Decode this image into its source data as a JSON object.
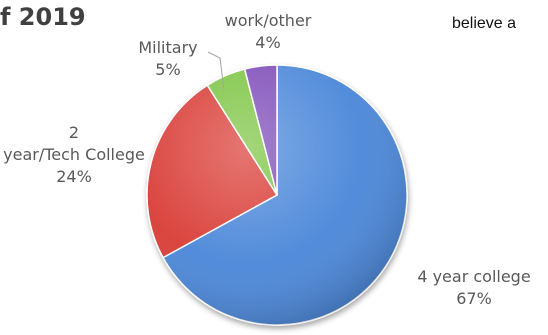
{
  "header": {
    "title_fragment": "f 2019",
    "side_text": "believe a"
  },
  "chart_data": {
    "type": "pie",
    "title": "",
    "slices": [
      {
        "label": "4 year college",
        "value": 67,
        "display": "67%",
        "color": "#4a86d8"
      },
      {
        "label": "2 year/Tech College",
        "value": 24,
        "display": "24%",
        "color": "#d93a34"
      },
      {
        "label": "Military",
        "value": 5,
        "display": "5%",
        "color": "#7cc443"
      },
      {
        "label": "work/other",
        "value": 4,
        "display": "4%",
        "color": "#7d4cb8"
      }
    ],
    "start_angle_deg": 0,
    "direction": "clockwise",
    "style": "3d-bevel"
  }
}
